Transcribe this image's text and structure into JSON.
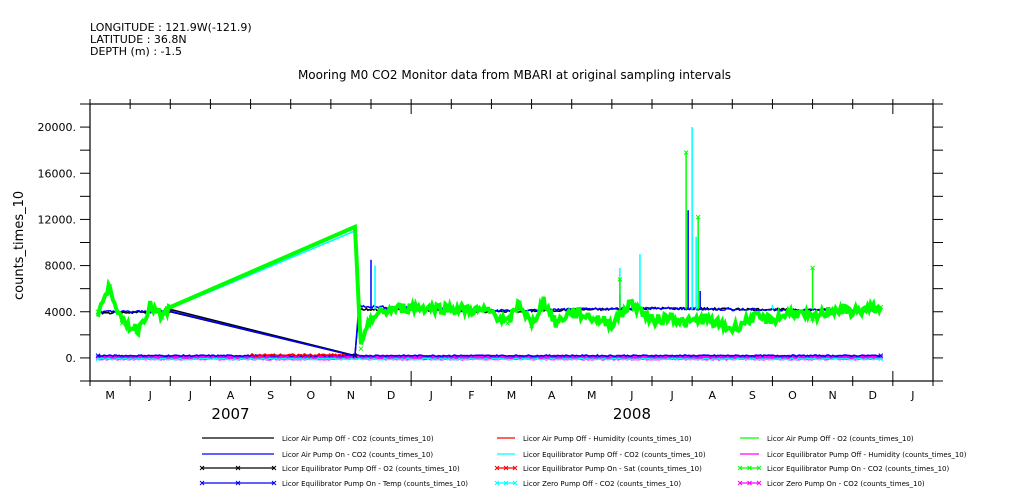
{
  "header": {
    "longitude": "LONGITUDE : 121.9W(-121.9)",
    "latitude": "LATITUDE : 36.8N",
    "depth": "DEPTH (m) : -1.5"
  },
  "chart_data": {
    "type": "line",
    "title": "Mooring M0 CO2 Monitor data from MBARI at original sampling intervals",
    "xlabel": "",
    "ylabel": "counts_times_10",
    "xlim": [
      "2007-05-01",
      "2009-02-01"
    ],
    "ylim": [
      -2000,
      22000
    ],
    "yticks": [
      0,
      4000,
      8000,
      12000,
      16000,
      20000
    ],
    "ytick_labels": [
      "0.",
      "4000.",
      "8000.",
      "12000.",
      "16000.",
      "20000."
    ],
    "xtick_labels": [
      "M",
      "J",
      "J",
      "A",
      "S",
      "O",
      "N",
      "D",
      "J",
      "F",
      "M",
      "A",
      "M",
      "J",
      "J",
      "A",
      "S",
      "O",
      "N",
      "D",
      "J"
    ],
    "year_labels": [
      {
        "label": "2007",
        "month_index": 3.5
      },
      {
        "label": "2008",
        "month_index": 13.5
      }
    ],
    "grid": false,
    "legend_position": "bottom",
    "series": [
      {
        "name": "Licor Air Pump Off - CO2 (counts_times_10)",
        "color": "#000000",
        "marker": false,
        "points": [
          [
            0.2,
            3900
          ],
          [
            1.2,
            3950
          ],
          [
            2.0,
            4000
          ],
          [
            6.6,
            200
          ],
          [
            6.7,
            4200
          ],
          [
            8,
            4200
          ],
          [
            10,
            4000
          ],
          [
            14,
            4300
          ],
          [
            19.7,
            4100
          ]
        ]
      },
      {
        "name": "Licor Air Pump On - CO2 (counts_times_10)",
        "color": "#0000ff",
        "marker": false,
        "points": [
          [
            0.2,
            4000
          ],
          [
            1.0,
            4000
          ],
          [
            2.0,
            4050
          ],
          [
            6.6,
            250
          ],
          [
            6.7,
            4500
          ],
          [
            8,
            4300
          ],
          [
            10,
            4100
          ],
          [
            12,
            4200
          ],
          [
            14,
            4300
          ],
          [
            16,
            4200
          ],
          [
            19.7,
            4100
          ]
        ],
        "spikes": [
          [
            7.0,
            8500
          ],
          [
            14.9,
            12800
          ],
          [
            15.2,
            5800
          ],
          [
            13.2,
            5500
          ]
        ]
      },
      {
        "name": "Licor Air Pump Off - Humidity (counts_times_10)",
        "color": "#ff0000",
        "marker": false,
        "points": [
          [
            4.0,
            250
          ],
          [
            6.6,
            250
          ]
        ]
      },
      {
        "name": "Licor Equilibrator Pump Off - CO2 (counts_times_10)",
        "color": "#00ffff",
        "marker": false,
        "points": [
          [
            2.0,
            4300
          ],
          [
            6.6,
            11000
          ]
        ],
        "spikes": [
          [
            7.1,
            8000
          ],
          [
            13.2,
            7800
          ],
          [
            13.7,
            9000
          ],
          [
            15.0,
            20000
          ],
          [
            15.1,
            10500
          ],
          [
            17.0,
            4600
          ]
        ]
      },
      {
        "name": "Licor Air Pump Off - O2 (counts_times_10)",
        "color": "#00ff00",
        "marker": false,
        "points": [
          [
            2.0,
            4500
          ],
          [
            6.6,
            11200
          ],
          [
            6.65,
            9000
          ]
        ]
      },
      {
        "name": "Licor Equilibrator Pump Off - Humidity (counts_times_10)",
        "color": "#ff00ff",
        "marker": false,
        "points": [
          [
            0.2,
            0
          ],
          [
            19.7,
            0
          ]
        ]
      },
      {
        "name": "Licor Equilibrator Pump Off - O2 (counts_times_10)",
        "color": "#000000",
        "marker": true,
        "points": [
          [
            2.0,
            4200
          ],
          [
            6.6,
            200
          ]
        ]
      },
      {
        "name": "Licor Equilibrator Pump On - Sat (counts_times_10)",
        "color": "#ff0000",
        "marker": true,
        "points": []
      },
      {
        "name": "Licor Equilibrator Pump On - CO2 (counts_times_10)",
        "color": "#00ff00",
        "marker": true,
        "points": [
          [
            0.2,
            4000
          ],
          [
            0.5,
            6200
          ],
          [
            0.8,
            3000
          ],
          [
            1.2,
            2500
          ],
          [
            1.5,
            4500
          ],
          [
            1.8,
            3500
          ],
          [
            2.0,
            4400
          ],
          [
            6.6,
            11200
          ],
          [
            6.75,
            800
          ],
          [
            7.0,
            3500
          ],
          [
            7.5,
            4200
          ],
          [
            8,
            4400
          ],
          [
            9,
            4300
          ],
          [
            10,
            4000
          ],
          [
            10.4,
            3000
          ],
          [
            10.7,
            4800
          ],
          [
            11,
            2800
          ],
          [
            11.3,
            5000
          ],
          [
            11.6,
            3000
          ],
          [
            12,
            4000
          ],
          [
            12.5,
            3500
          ],
          [
            13,
            3000
          ],
          [
            13.5,
            4800
          ],
          [
            14,
            3200
          ],
          [
            14.5,
            3600
          ],
          [
            14.8,
            3000
          ],
          [
            15.3,
            3400
          ],
          [
            15.6,
            3000
          ],
          [
            16,
            2500
          ],
          [
            16.5,
            3500
          ],
          [
            17,
            3300
          ],
          [
            17.5,
            4000
          ],
          [
            18,
            3400
          ],
          [
            18.5,
            4200
          ],
          [
            19,
            4000
          ],
          [
            19.7,
            4400
          ]
        ],
        "spikes": [
          [
            14.85,
            17800
          ],
          [
            15.15,
            12200
          ],
          [
            18.0,
            7800
          ],
          [
            13.2,
            6800
          ]
        ]
      },
      {
        "name": "Licor Equilibrator Pump On - Temp (counts_times_10)",
        "color": "#0000ff",
        "marker": true,
        "points": [
          [
            0.2,
            200
          ],
          [
            19.7,
            200
          ]
        ]
      },
      {
        "name": "Licor Zero Pump Off - CO2 (counts_times_10)",
        "color": "#00ffff",
        "marker": true,
        "points": [
          [
            0.2,
            -100
          ],
          [
            19.7,
            -100
          ]
        ]
      },
      {
        "name": "Licor Zero Pump On - CO2 (counts_times_10)",
        "color": "#ff00ff",
        "marker": true,
        "points": [
          [
            0.2,
            50
          ],
          [
            2.0,
            50
          ],
          [
            6.6,
            50
          ],
          [
            19.7,
            50
          ]
        ]
      }
    ]
  }
}
